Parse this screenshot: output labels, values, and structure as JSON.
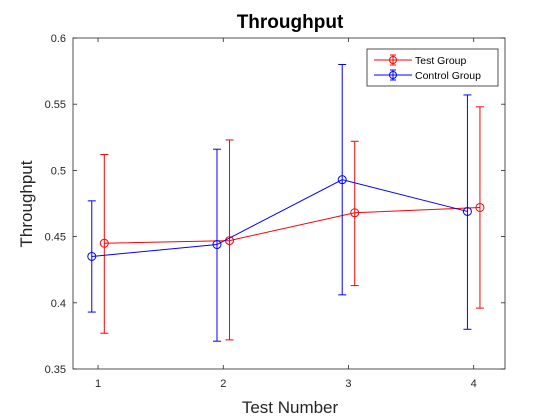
{
  "chart_data": {
    "type": "line",
    "title": "Throughput",
    "xlabel": "Test Number",
    "ylabel": "Throughput",
    "x": [
      1,
      2,
      3,
      4
    ],
    "xticks": [
      "1",
      "2",
      "3",
      "4"
    ],
    "xlim": [
      0.8,
      4.25
    ],
    "ylim": [
      0.35,
      0.6
    ],
    "yticks": [
      "0.35",
      "0.4",
      "0.45",
      "0.5",
      "0.55",
      "0.6"
    ],
    "grid": false,
    "legend_position": "top-right",
    "series": [
      {
        "name": "Test Group",
        "color": "#ff0000",
        "x": [
          1.05,
          2.05,
          3.05,
          4.05
        ],
        "values": [
          0.445,
          0.447,
          0.468,
          0.472
        ],
        "lower": [
          0.377,
          0.372,
          0.413,
          0.396
        ],
        "upper": [
          0.512,
          0.523,
          0.522,
          0.548
        ]
      },
      {
        "name": "Control Group",
        "color": "#0000ff",
        "x": [
          0.95,
          1.95,
          2.95,
          3.95
        ],
        "values": [
          0.435,
          0.444,
          0.493,
          0.469
        ],
        "lower": [
          0.393,
          0.371,
          0.406,
          0.38
        ],
        "upper": [
          0.477,
          0.516,
          0.58,
          0.557
        ]
      }
    ]
  }
}
